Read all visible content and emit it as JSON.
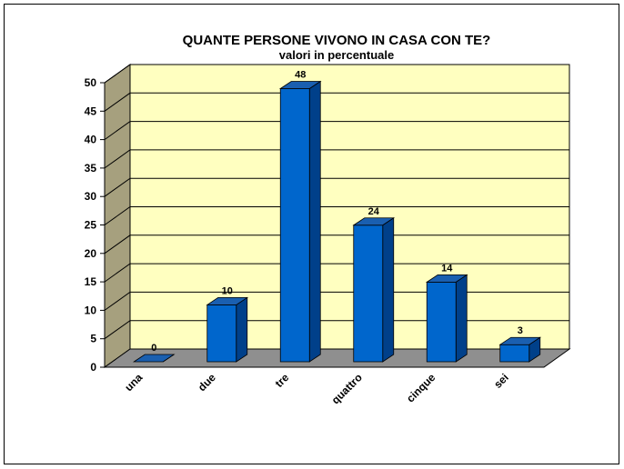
{
  "chart_data": {
    "type": "bar",
    "title": "QUANTE PERSONE VIVONO IN CASA CON TE?",
    "subtitle": "valori in percentuale",
    "categories": [
      "una",
      "due",
      "tre",
      "quattro",
      "cinque",
      "sei"
    ],
    "values": [
      0,
      10,
      48,
      24,
      14,
      3
    ],
    "data_labels": [
      "0",
      "10",
      "48",
      "24",
      "14",
      "3"
    ],
    "ylim": [
      0,
      50
    ],
    "yticks": [
      "0",
      "5",
      "10",
      "15",
      "20",
      "25",
      "30",
      "35",
      "40",
      "45",
      "50"
    ],
    "grid": true,
    "three_d": true,
    "legend": "none",
    "colors": {
      "bar_front": "#0066cc",
      "bar_side": "#00408a",
      "bar_top": "#1a5fb0",
      "back_wall": "#ffffc0",
      "side_wall": "#a6a07e",
      "floor": "#8f8f8f",
      "grid": "#000000"
    }
  }
}
